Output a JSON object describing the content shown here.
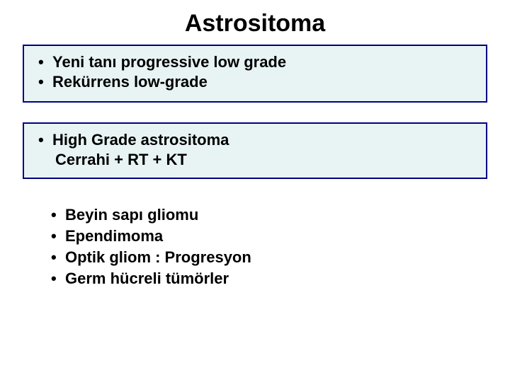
{
  "title": {
    "text": "Astrositoma",
    "fontsize": 34,
    "color": "#000000"
  },
  "box1": {
    "background_color": "#e8f4f4",
    "border_color": "#000080",
    "border_width": 2,
    "items": [
      "Yeni tanı progressive low grade",
      "Rekürrens low-grade"
    ],
    "fontsize": 22,
    "text_color": "#000000"
  },
  "box2": {
    "background_color": "#e8f4f4",
    "border_color": "#000080",
    "border_width": 2,
    "bullet_item": "High Grade astrositoma",
    "sub_item": "Cerrahi + RT + KT",
    "fontsize": 22,
    "text_color": "#000000"
  },
  "plain_list": {
    "items": [
      "Beyin sapı gliomu",
      "Ependimoma",
      "Optik gliom : Progresyon",
      "Germ hücreli tümörler"
    ],
    "fontsize": 22,
    "text_color": "#000000"
  },
  "bullet_char": "•"
}
